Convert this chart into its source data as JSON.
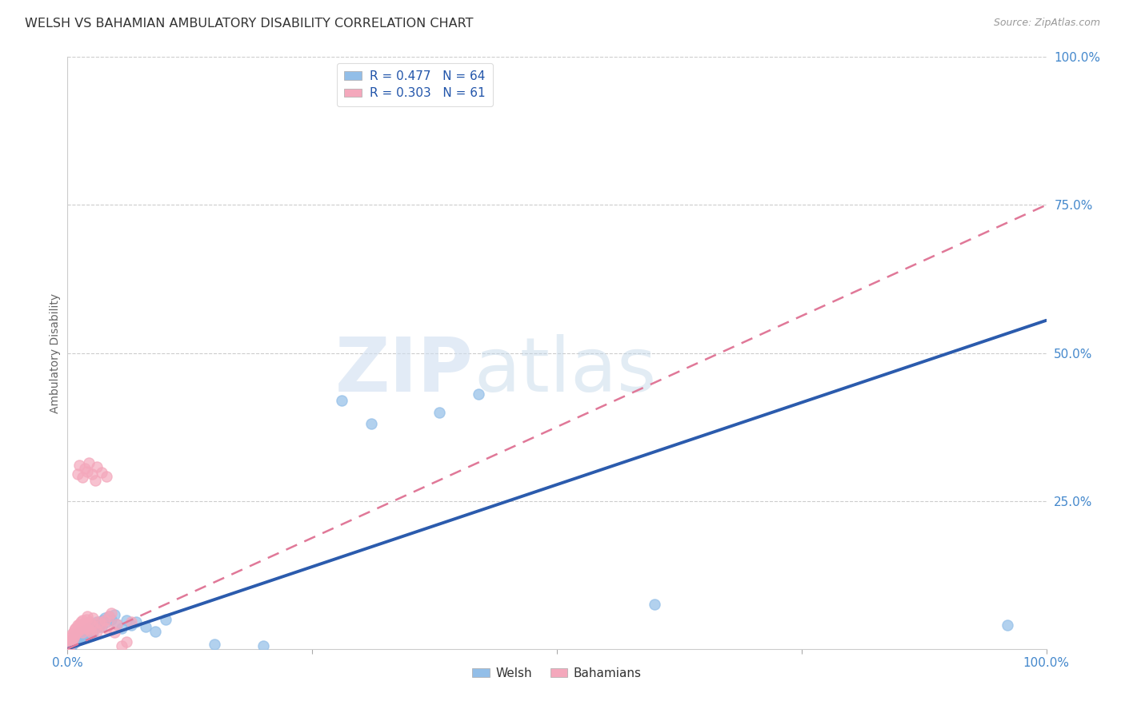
{
  "title": "WELSH VS BAHAMIAN AMBULATORY DISABILITY CORRELATION CHART",
  "source": "Source: ZipAtlas.com",
  "ylabel": "Ambulatory Disability",
  "welsh_color": "#92BEE8",
  "bahamian_color": "#F4A8BC",
  "welsh_line_color": "#2B5BAD",
  "bahamian_line_color": "#E07898",
  "background_color": "#FFFFFF",
  "watermark_zip": "ZIP",
  "watermark_atlas": "atlas",
  "welsh_line_slope": 0.555,
  "welsh_line_intercept": 0.0,
  "bahamian_line_slope": 0.75,
  "bahamian_line_intercept": 0.0,
  "legend_text_welsh": "R = 0.477   N = 64",
  "legend_text_bahamian": "R = 0.303   N = 61",
  "welsh_points": [
    [
      0.001,
      0.003
    ],
    [
      0.002,
      0.005
    ],
    [
      0.002,
      0.008
    ],
    [
      0.003,
      0.006
    ],
    [
      0.003,
      0.01
    ],
    [
      0.004,
      0.004
    ],
    [
      0.004,
      0.012
    ],
    [
      0.005,
      0.008
    ],
    [
      0.005,
      0.015
    ],
    [
      0.006,
      0.012
    ],
    [
      0.006,
      0.018
    ],
    [
      0.007,
      0.01
    ],
    [
      0.007,
      0.02
    ],
    [
      0.008,
      0.014
    ],
    [
      0.008,
      0.022
    ],
    [
      0.009,
      0.016
    ],
    [
      0.01,
      0.018
    ],
    [
      0.01,
      0.025
    ],
    [
      0.011,
      0.02
    ],
    [
      0.012,
      0.022
    ],
    [
      0.012,
      0.028
    ],
    [
      0.013,
      0.024
    ],
    [
      0.014,
      0.026
    ],
    [
      0.015,
      0.02
    ],
    [
      0.015,
      0.03
    ],
    [
      0.016,
      0.022
    ],
    [
      0.017,
      0.028
    ],
    [
      0.018,
      0.025
    ],
    [
      0.019,
      0.032
    ],
    [
      0.02,
      0.028
    ],
    [
      0.021,
      0.03
    ],
    [
      0.022,
      0.035
    ],
    [
      0.023,
      0.032
    ],
    [
      0.024,
      0.038
    ],
    [
      0.025,
      0.022
    ],
    [
      0.026,
      0.028
    ],
    [
      0.027,
      0.035
    ],
    [
      0.028,
      0.04
    ],
    [
      0.03,
      0.045
    ],
    [
      0.032,
      0.038
    ],
    [
      0.033,
      0.042
    ],
    [
      0.035,
      0.038
    ],
    [
      0.036,
      0.048
    ],
    [
      0.038,
      0.052
    ],
    [
      0.04,
      0.045
    ],
    [
      0.042,
      0.055
    ],
    [
      0.045,
      0.05
    ],
    [
      0.048,
      0.058
    ],
    [
      0.05,
      0.042
    ],
    [
      0.055,
      0.035
    ],
    [
      0.06,
      0.048
    ],
    [
      0.065,
      0.04
    ],
    [
      0.07,
      0.045
    ],
    [
      0.08,
      0.038
    ],
    [
      0.09,
      0.03
    ],
    [
      0.1,
      0.05
    ],
    [
      0.15,
      0.008
    ],
    [
      0.2,
      0.005
    ],
    [
      0.28,
      0.42
    ],
    [
      0.31,
      0.38
    ],
    [
      0.38,
      0.4
    ],
    [
      0.42,
      0.43
    ],
    [
      0.6,
      0.075
    ],
    [
      0.96,
      0.04
    ]
  ],
  "bahamian_points": [
    [
      0.001,
      0.003
    ],
    [
      0.001,
      0.008
    ],
    [
      0.002,
      0.005
    ],
    [
      0.002,
      0.012
    ],
    [
      0.003,
      0.008
    ],
    [
      0.003,
      0.015
    ],
    [
      0.004,
      0.01
    ],
    [
      0.004,
      0.02
    ],
    [
      0.005,
      0.015
    ],
    [
      0.005,
      0.025
    ],
    [
      0.006,
      0.018
    ],
    [
      0.006,
      0.028
    ],
    [
      0.007,
      0.022
    ],
    [
      0.007,
      0.032
    ],
    [
      0.008,
      0.025
    ],
    [
      0.008,
      0.035
    ],
    [
      0.009,
      0.028
    ],
    [
      0.01,
      0.03
    ],
    [
      0.01,
      0.04
    ],
    [
      0.011,
      0.035
    ],
    [
      0.012,
      0.032
    ],
    [
      0.012,
      0.042
    ],
    [
      0.013,
      0.038
    ],
    [
      0.014,
      0.045
    ],
    [
      0.015,
      0.028
    ],
    [
      0.015,
      0.048
    ],
    [
      0.016,
      0.035
    ],
    [
      0.017,
      0.042
    ],
    [
      0.018,
      0.038
    ],
    [
      0.019,
      0.05
    ],
    [
      0.02,
      0.035
    ],
    [
      0.02,
      0.055
    ],
    [
      0.022,
      0.032
    ],
    [
      0.023,
      0.045
    ],
    [
      0.024,
      0.028
    ],
    [
      0.025,
      0.04
    ],
    [
      0.026,
      0.052
    ],
    [
      0.028,
      0.035
    ],
    [
      0.03,
      0.03
    ],
    [
      0.032,
      0.045
    ],
    [
      0.035,
      0.042
    ],
    [
      0.038,
      0.048
    ],
    [
      0.04,
      0.035
    ],
    [
      0.042,
      0.055
    ],
    [
      0.045,
      0.06
    ],
    [
      0.048,
      0.028
    ],
    [
      0.05,
      0.042
    ],
    [
      0.055,
      0.005
    ],
    [
      0.06,
      0.012
    ],
    [
      0.065,
      0.045
    ],
    [
      0.01,
      0.295
    ],
    [
      0.012,
      0.31
    ],
    [
      0.015,
      0.29
    ],
    [
      0.018,
      0.305
    ],
    [
      0.02,
      0.3
    ],
    [
      0.022,
      0.315
    ],
    [
      0.025,
      0.295
    ],
    [
      0.028,
      0.285
    ],
    [
      0.03,
      0.308
    ],
    [
      0.035,
      0.298
    ],
    [
      0.04,
      0.292
    ]
  ]
}
